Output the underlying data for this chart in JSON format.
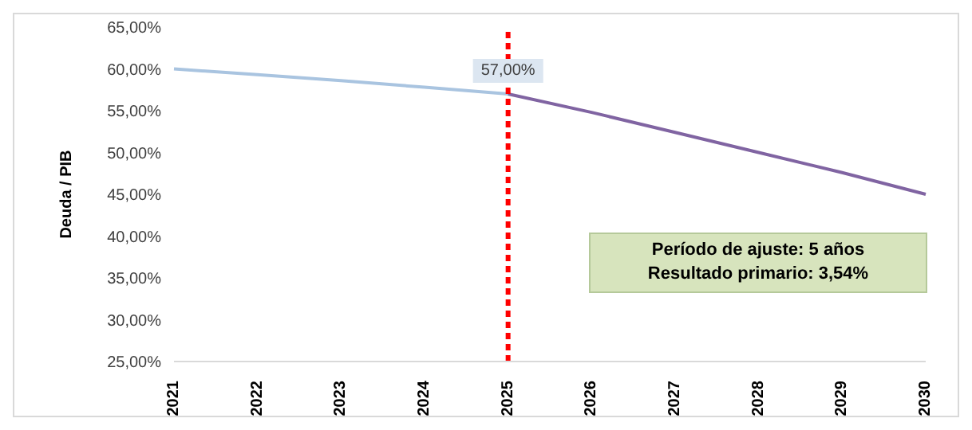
{
  "chart_data": {
    "type": "line",
    "ylabel": "Deuda / PIB",
    "categories": [
      "2021",
      "2022",
      "2023",
      "2024",
      "2025",
      "2026",
      "2027",
      "2028",
      "2029",
      "2030"
    ],
    "series": [
      {
        "color": "#a9c4e0",
        "values": [
          60,
          59.3,
          58.6,
          57.8,
          57,
          null,
          null,
          null,
          null,
          null
        ]
      },
      {
        "color": "#8064a2",
        "values": [
          null,
          null,
          null,
          null,
          57,
          54.8,
          52.4,
          50,
          47.6,
          45
        ]
      }
    ],
    "ylim": [
      25,
      65
    ],
    "yticks": [
      {
        "value": 25,
        "label": "25,00%"
      },
      {
        "value": 30,
        "label": "30,00%"
      },
      {
        "value": 35,
        "label": "35,00%"
      },
      {
        "value": 40,
        "label": "40,00%"
      },
      {
        "value": 45,
        "label": "45,00%"
      },
      {
        "value": 50,
        "label": "50,00%"
      },
      {
        "value": 55,
        "label": "55,00%"
      },
      {
        "value": 60,
        "label": "60,00%"
      },
      {
        "value": 65,
        "label": "65,00%"
      }
    ],
    "ref_lines": [
      {
        "axis": "x",
        "value": "2025",
        "color": "#ff0000",
        "line_style": "dashed"
      }
    ],
    "annotations": [
      {
        "text": "57,00%",
        "x": "2025",
        "y": 57
      },
      "Período de ajuste: 5 años",
      "Resultado primario: 3,54%"
    ],
    "grid": false,
    "legend": false,
    "marker": "none",
    "line_style": "solid"
  }
}
